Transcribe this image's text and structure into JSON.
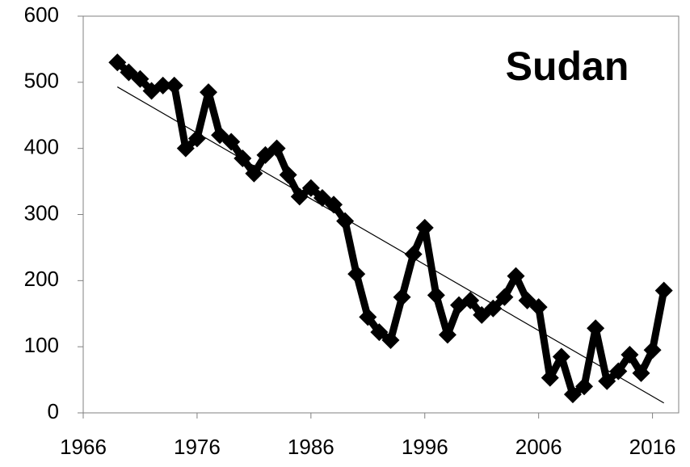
{
  "chart_data": {
    "type": "line",
    "annotation": "Sudan",
    "x": [
      1969,
      1970,
      1971,
      1972,
      1973,
      1974,
      1975,
      1976,
      1977,
      1978,
      1979,
      1980,
      1981,
      1982,
      1983,
      1984,
      1985,
      1986,
      1987,
      1988,
      1989,
      1990,
      1991,
      1992,
      1993,
      1994,
      1995,
      1996,
      1997,
      1998,
      1999,
      2000,
      2001,
      2002,
      2003,
      2004,
      2005,
      2006,
      2007,
      2008,
      2009,
      2010,
      2011,
      2012,
      2013,
      2014,
      2015,
      2016,
      2017
    ],
    "series": [
      {
        "color": "#000000",
        "values": [
          530,
          515,
          505,
          487,
          495,
          495,
          400,
          415,
          485,
          420,
          410,
          385,
          362,
          390,
          400,
          360,
          327,
          340,
          325,
          315,
          290,
          210,
          145,
          122,
          110,
          175,
          240,
          280,
          178,
          118,
          163,
          170,
          148,
          158,
          175,
          207,
          170,
          160,
          53,
          85,
          28,
          40,
          128,
          48,
          63,
          88,
          60,
          95,
          185
        ]
      }
    ],
    "trendline": {
      "x": [
        1969,
        2017
      ],
      "values": [
        493,
        15
      ],
      "color": "#000000"
    },
    "xlim": [
      1966,
      2018.3
    ],
    "xticks": [
      1966,
      1976,
      1986,
      1996,
      2006,
      2016
    ],
    "ylim": [
      0,
      600
    ],
    "yticks": [
      0,
      100,
      200,
      300,
      400,
      500,
      600
    ],
    "grid": false
  }
}
